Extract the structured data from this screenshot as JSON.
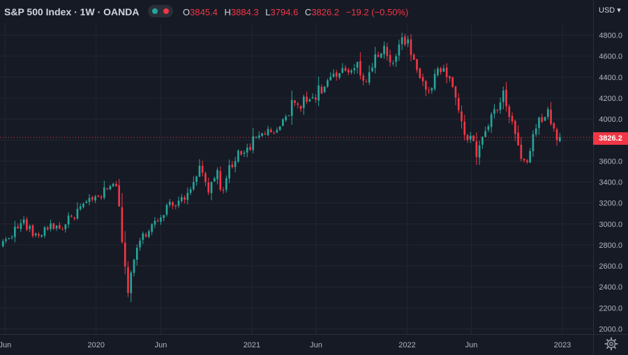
{
  "header": {
    "title": "S&P 500 Index · 1W · OANDA",
    "open_label": "O",
    "open": "3845.4",
    "high_label": "H",
    "high": "3884.3",
    "low_label": "L",
    "low": "3794.6",
    "close_label": "C",
    "close": "3826.2",
    "change": "−19.2 (−0.50%)",
    "currency": "USD",
    "currency_caret": "▾"
  },
  "last_price_label": "3826.2",
  "colors": {
    "background": "#161a25",
    "grid": "#232733",
    "up": "#26a69a",
    "down": "#f23645",
    "text": "#d1d4dc",
    "axis_text": "#b2b5be"
  },
  "chart_data": {
    "type": "candlestick",
    "interval": "1W",
    "ylim": [
      1950,
      4910
    ],
    "y_ticks": [
      2000,
      2200,
      2400,
      2600,
      2800,
      3000,
      3200,
      3400,
      3600,
      3800,
      4000,
      4200,
      4400,
      4600,
      4800
    ],
    "x_ticks": [
      {
        "label": "Jun",
        "date": "2019-06-01"
      },
      {
        "label": "2020",
        "date": "2020-01-01"
      },
      {
        "label": "Jun",
        "date": "2020-06-01"
      },
      {
        "label": "2021",
        "date": "2021-01-01"
      },
      {
        "label": "Jun",
        "date": "2021-06-01"
      },
      {
        "label": "2022",
        "date": "2022-01-01"
      },
      {
        "label": "Jun",
        "date": "2022-06-01"
      },
      {
        "label": "2023",
        "date": "2023-01-01"
      }
    ],
    "last_price": 3826.2,
    "anchors": [
      [
        "2019-05-20",
        2780
      ],
      [
        "2019-06-10",
        2890
      ],
      [
        "2019-07-15",
        3020
      ],
      [
        "2019-08-12",
        2870
      ],
      [
        "2019-09-16",
        3000
      ],
      [
        "2019-10-07",
        2950
      ],
      [
        "2019-11-25",
        3150
      ],
      [
        "2019-12-30",
        3240
      ],
      [
        "2020-02-17",
        3380
      ],
      [
        "2020-03-16",
        2350
      ],
      [
        "2020-03-23",
        2540
      ],
      [
        "2020-04-13",
        2850
      ],
      [
        "2020-06-08",
        3130
      ],
      [
        "2020-07-27",
        3270
      ],
      [
        "2020-08-31",
        3520
      ],
      [
        "2020-09-21",
        3300
      ],
      [
        "2020-10-12",
        3480
      ],
      [
        "2020-10-26",
        3270
      ],
      [
        "2020-11-09",
        3560
      ],
      [
        "2020-12-28",
        3760
      ],
      [
        "2021-02-15",
        3910
      ],
      [
        "2021-03-01",
        3840
      ],
      [
        "2021-04-05",
        4130
      ],
      [
        "2021-05-10",
        4170
      ],
      [
        "2021-06-28",
        4350
      ],
      [
        "2021-08-16",
        4460
      ],
      [
        "2021-09-06",
        4540
      ],
      [
        "2021-09-27",
        4350
      ],
      [
        "2021-11-01",
        4690
      ],
      [
        "2021-11-29",
        4560
      ],
      [
        "2021-12-27",
        4780
      ],
      [
        "2022-01-24",
        4430
      ],
      [
        "2022-02-21",
        4290
      ],
      [
        "2022-03-28",
        4540
      ],
      [
        "2022-05-02",
        4120
      ],
      [
        "2022-05-16",
        3900
      ],
      [
        "2022-06-13",
        3680
      ],
      [
        "2022-07-04",
        3890
      ],
      [
        "2022-08-15",
        4230
      ],
      [
        "2022-09-05",
        3960
      ],
      [
        "2022-09-26",
        3600
      ],
      [
        "2022-10-10",
        3610
      ],
      [
        "2022-11-07",
        3990
      ],
      [
        "2022-11-28",
        4070
      ],
      [
        "2022-12-12",
        3880
      ],
      [
        "2022-12-26",
        3826
      ]
    ]
  }
}
